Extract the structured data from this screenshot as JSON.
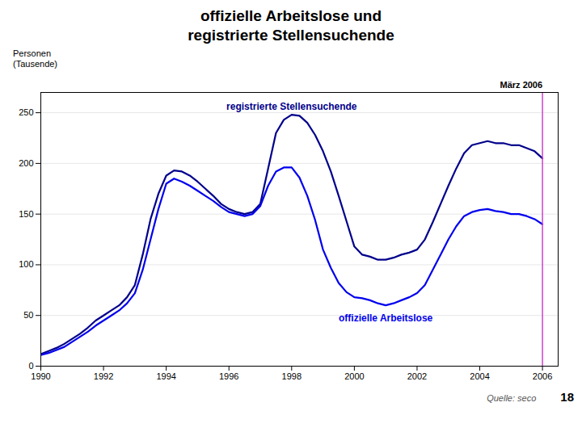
{
  "chart_data": {
    "type": "line",
    "title": "offizielle Arbeitslose und\nregistrierte Stellensuchende",
    "y_label": "Personen\n(Tausende)",
    "source": "Quelle: seco",
    "page_number": "18",
    "x": [
      1990.0,
      1990.25,
      1990.5,
      1990.75,
      1991.0,
      1991.25,
      1991.5,
      1991.75,
      1992.0,
      1992.25,
      1992.5,
      1992.75,
      1993.0,
      1993.25,
      1993.5,
      1993.75,
      1994.0,
      1994.25,
      1994.5,
      1994.75,
      1995.0,
      1995.25,
      1995.5,
      1995.75,
      1996.0,
      1996.25,
      1996.5,
      1996.75,
      1997.0,
      1997.25,
      1997.5,
      1997.75,
      1998.0,
      1998.25,
      1998.5,
      1998.75,
      1999.0,
      1999.25,
      1999.5,
      1999.75,
      2000.0,
      2000.25,
      2000.5,
      2000.75,
      2001.0,
      2001.25,
      2001.5,
      2001.75,
      2002.0,
      2002.25,
      2002.5,
      2002.75,
      2003.0,
      2003.25,
      2003.5,
      2003.75,
      2004.0,
      2004.25,
      2004.5,
      2004.75,
      2005.0,
      2005.25,
      2005.5,
      2005.75,
      2006.0
    ],
    "series": [
      {
        "name": "registrierte Stellensuchende",
        "color": "#00008B",
        "values": [
          12,
          15,
          18,
          22,
          27,
          32,
          38,
          45,
          50,
          55,
          60,
          68,
          80,
          110,
          145,
          170,
          188,
          193,
          192,
          188,
          182,
          175,
          168,
          160,
          155,
          152,
          150,
          152,
          160,
          195,
          230,
          243,
          248,
          247,
          240,
          228,
          212,
          192,
          168,
          143,
          118,
          110,
          108,
          105,
          105,
          107,
          110,
          112,
          115,
          125,
          142,
          160,
          178,
          195,
          210,
          218,
          220,
          222,
          220,
          220,
          218,
          218,
          215,
          212,
          205
        ]
      },
      {
        "name": "offizielle Arbeitslose",
        "color": "#0000ee",
        "values": [
          11,
          13,
          16,
          19,
          24,
          29,
          34,
          40,
          45,
          50,
          55,
          62,
          72,
          95,
          125,
          155,
          180,
          185,
          182,
          178,
          173,
          168,
          163,
          157,
          152,
          150,
          148,
          150,
          158,
          178,
          192,
          196,
          196,
          186,
          168,
          144,
          115,
          97,
          82,
          73,
          68,
          67,
          65,
          62,
          60,
          62,
          65,
          68,
          72,
          80,
          95,
          110,
          125,
          138,
          148,
          152,
          154,
          155,
          153,
          152,
          150,
          150,
          148,
          145,
          140
        ]
      }
    ],
    "annotations": [
      {
        "x": 2006.0,
        "text": "März 2006",
        "color": "#cc44cc"
      }
    ],
    "xlim": [
      1990,
      2006.5
    ],
    "xticks": [
      1990,
      1992,
      1994,
      1996,
      1998,
      2000,
      2002,
      2004,
      2006
    ],
    "ylim": [
      0,
      270
    ],
    "yticks": [
      0,
      50,
      100,
      150,
      200,
      250
    ],
    "grid": true
  }
}
